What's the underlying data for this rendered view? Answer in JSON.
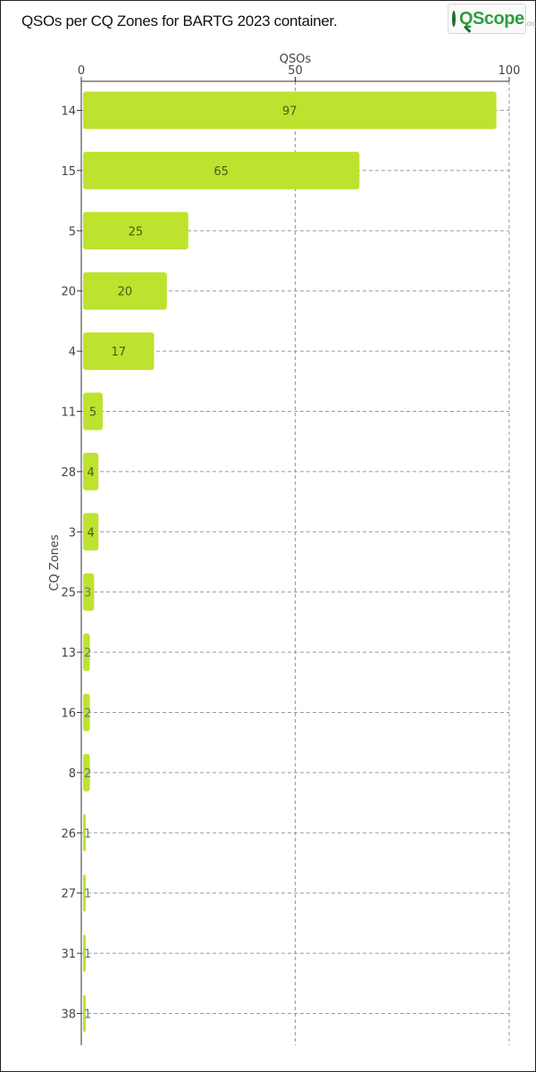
{
  "title": "QSOs per CQ Zones for BARTG 2023 container.",
  "logo": {
    "word": "QScope",
    "suffix": ".org"
  },
  "chart_data": {
    "type": "bar",
    "orientation": "horizontal",
    "title": "QSOs per CQ Zones for BARTG 2023 container.",
    "xlabel": "QSOs",
    "ylabel": "CQ Zones",
    "xlim": [
      0,
      100
    ],
    "xticks": [
      0,
      50,
      100
    ],
    "x_axis_position": "top",
    "grid": true,
    "bar_color": "#bde32e",
    "categories": [
      "14",
      "15",
      "5",
      "20",
      "4",
      "11",
      "28",
      "3",
      "25",
      "13",
      "16",
      "8",
      "26",
      "27",
      "31",
      "38"
    ],
    "values": [
      97,
      65,
      25,
      20,
      17,
      5,
      4,
      4,
      3,
      2,
      2,
      2,
      1,
      1,
      1,
      1
    ],
    "value_labels": [
      "97",
      "65",
      "25",
      "20",
      "17",
      "5",
      "4",
      "4",
      "3",
      "2",
      "2",
      "2",
      "1",
      "1",
      "1",
      "1"
    ]
  }
}
